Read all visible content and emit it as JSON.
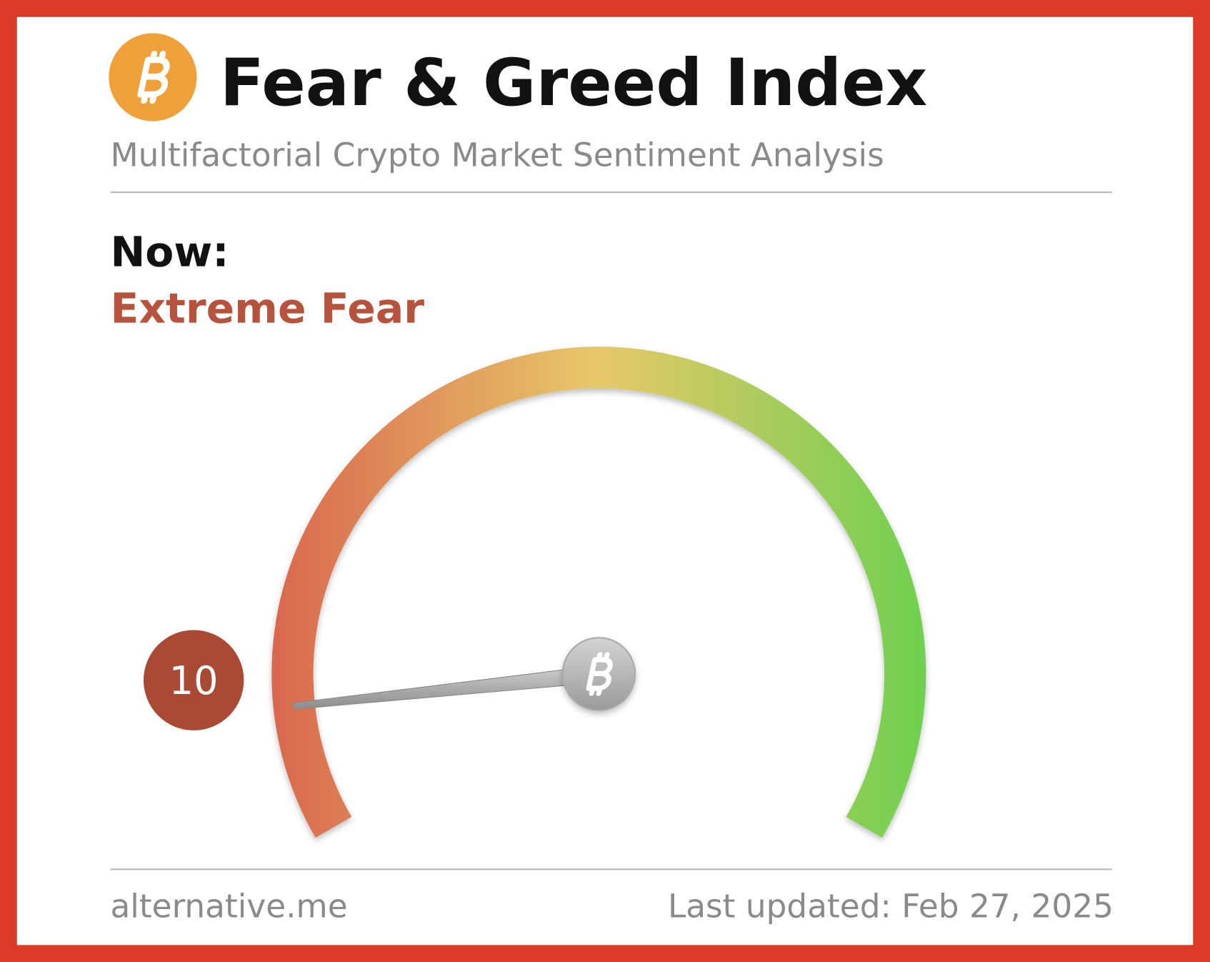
{
  "chart_data": {
    "type": "gauge",
    "title": "Fear & Greed Index",
    "subtitle": "Multifactorial Crypto Market Sentiment Analysis",
    "label": "Now:",
    "classification": "Extreme Fear",
    "value": 10,
    "ylim": [
      0,
      100
    ],
    "colors": [
      "#d9674e",
      "#e8c86a",
      "#6fd04f"
    ],
    "source": "alternative.me",
    "updated": "Last updated: Feb 27, 2025"
  }
}
